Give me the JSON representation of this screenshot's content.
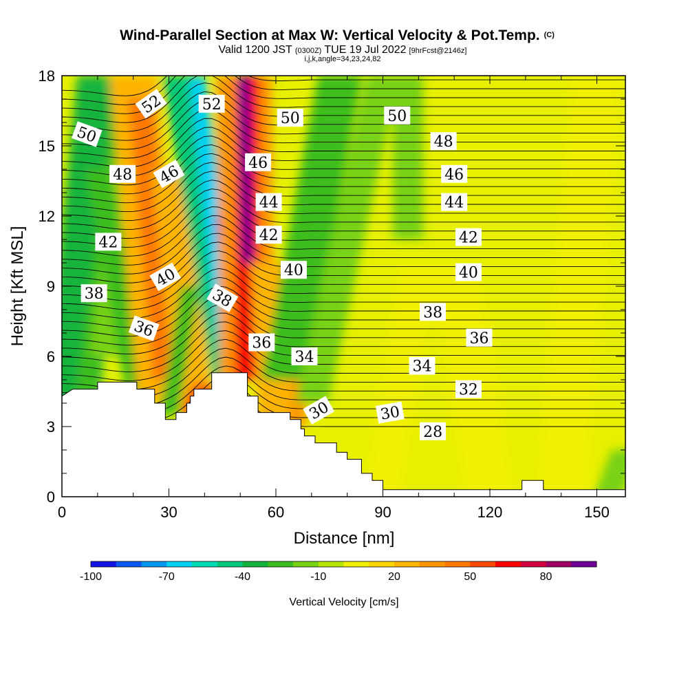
{
  "header": {
    "title": "Wind-Parallel Section at Max W: Vertical Velocity & Pot.Temp.",
    "title_mark": "(C)",
    "subtitle_prefix": "Valid 1200 JST",
    "subtitle_utc": "(0300Z)",
    "subtitle_date": "TUE 19 Jul 2022",
    "subtitle_fcst": "[9hrFcst@2146z]",
    "subtitle_index": "i,j,k,angle=34,23,24,82"
  },
  "chart_data": {
    "type": "heatmap",
    "xlabel": "Distance [nm]",
    "ylabel": "Height [Kft MSL]",
    "xlim": [
      0,
      158
    ],
    "ylim": [
      0,
      18
    ],
    "xticks": [
      0,
      30,
      60,
      90,
      120,
      150
    ],
    "yticks": [
      0,
      3,
      6,
      9,
      12,
      15,
      18
    ],
    "colorbar": {
      "label": "Vertical Velocity [cm/s]",
      "ticks": [
        -100,
        -70,
        -40,
        -10,
        20,
        50,
        80
      ],
      "levels": [
        -100,
        -90,
        -80,
        -70,
        -60,
        -50,
        -40,
        -30,
        -20,
        -10,
        0,
        10,
        20,
        30,
        40,
        50,
        60,
        70,
        80,
        90,
        100
      ],
      "colors": [
        "#1414e6",
        "#0a5af0",
        "#0096f0",
        "#00d2f5",
        "#00dcb4",
        "#00c878",
        "#14b43c",
        "#3cbe1e",
        "#78d214",
        "#b4e600",
        "#f0f000",
        "#ffd700",
        "#ffb400",
        "#ff9600",
        "#ff7800",
        "#ff4b00",
        "#ff0000",
        "#d2003c",
        "#a00064",
        "#6e0096"
      ]
    },
    "theta_contour_labels": [
      {
        "v": "52",
        "x": 25,
        "y": 16.8,
        "rot": -35
      },
      {
        "v": "52",
        "x": 42,
        "y": 16.8,
        "rot": 0
      },
      {
        "v": "50",
        "x": 7,
        "y": 15.5,
        "rot": 20
      },
      {
        "v": "50",
        "x": 64,
        "y": 16.2,
        "rot": 0
      },
      {
        "v": "50",
        "x": 94,
        "y": 16.3,
        "rot": 0
      },
      {
        "v": "48",
        "x": 17,
        "y": 13.8,
        "rot": 0
      },
      {
        "v": "48",
        "x": 107,
        "y": 15.2,
        "rot": 0
      },
      {
        "v": "46",
        "x": 30,
        "y": 13.8,
        "rot": -30
      },
      {
        "v": "46",
        "x": 55,
        "y": 14.3,
        "rot": 0
      },
      {
        "v": "46",
        "x": 110,
        "y": 13.8,
        "rot": 0
      },
      {
        "v": "44",
        "x": 58,
        "y": 12.6,
        "rot": 0
      },
      {
        "v": "44",
        "x": 110,
        "y": 12.6,
        "rot": 0
      },
      {
        "v": "42",
        "x": 13,
        "y": 10.9,
        "rot": 0
      },
      {
        "v": "42",
        "x": 58,
        "y": 11.2,
        "rot": 0
      },
      {
        "v": "42",
        "x": 114,
        "y": 11.1,
        "rot": 0
      },
      {
        "v": "40",
        "x": 29,
        "y": 9.4,
        "rot": -30
      },
      {
        "v": "40",
        "x": 65,
        "y": 9.7,
        "rot": 0
      },
      {
        "v": "40",
        "x": 114,
        "y": 9.6,
        "rot": 0
      },
      {
        "v": "38",
        "x": 9,
        "y": 8.7,
        "rot": 0
      },
      {
        "v": "38",
        "x": 45,
        "y": 8.5,
        "rot": 30
      },
      {
        "v": "38",
        "x": 104,
        "y": 7.9,
        "rot": 0
      },
      {
        "v": "36",
        "x": 23,
        "y": 7.2,
        "rot": 20
      },
      {
        "v": "36",
        "x": 56,
        "y": 6.6,
        "rot": 0
      },
      {
        "v": "36",
        "x": 117,
        "y": 6.8,
        "rot": 0
      },
      {
        "v": "34",
        "x": 68,
        "y": 6.0,
        "rot": 0
      },
      {
        "v": "34",
        "x": 101,
        "y": 5.6,
        "rot": 0
      },
      {
        "v": "32",
        "x": 114,
        "y": 4.6,
        "rot": 0
      },
      {
        "v": "30",
        "x": 72,
        "y": 3.7,
        "rot": -30
      },
      {
        "v": "30",
        "x": 92,
        "y": 3.6,
        "rot": -10
      },
      {
        "v": "28",
        "x": 104,
        "y": 2.8,
        "rot": 0
      }
    ],
    "terrain_top_kft": [
      [
        0,
        4.3
      ],
      [
        3,
        4.6
      ],
      [
        10,
        4.6
      ],
      [
        10,
        4.9
      ],
      [
        21,
        4.9
      ],
      [
        21,
        4.6
      ],
      [
        26,
        4.6
      ],
      [
        26,
        4.0
      ],
      [
        29,
        4.0
      ],
      [
        29,
        3.3
      ],
      [
        32,
        3.3
      ],
      [
        32,
        3.6
      ],
      [
        35,
        3.6
      ],
      [
        35,
        4.0
      ],
      [
        36,
        4.0
      ],
      [
        36,
        4.3
      ],
      [
        37,
        4.3
      ],
      [
        37,
        4.6
      ],
      [
        42,
        4.6
      ],
      [
        42,
        5.3
      ],
      [
        52,
        5.3
      ],
      [
        52,
        4.3
      ],
      [
        55,
        4.3
      ],
      [
        55,
        3.6
      ],
      [
        64,
        3.6
      ],
      [
        64,
        3.3
      ],
      [
        67,
        3.3
      ],
      [
        67,
        2.9
      ],
      [
        68,
        2.9
      ],
      [
        68,
        2.6
      ],
      [
        71,
        2.6
      ],
      [
        71,
        2.3
      ],
      [
        77,
        2.3
      ],
      [
        77,
        1.9
      ],
      [
        80,
        1.9
      ],
      [
        80,
        1.6
      ],
      [
        84,
        1.6
      ],
      [
        84,
        1.0
      ],
      [
        87,
        1.0
      ],
      [
        87,
        0.7
      ],
      [
        90,
        0.7
      ],
      [
        90,
        0.3
      ],
      [
        129,
        0.3
      ],
      [
        129,
        0.7
      ],
      [
        135,
        0.7
      ],
      [
        135,
        0.3
      ],
      [
        158,
        0.3
      ]
    ]
  }
}
